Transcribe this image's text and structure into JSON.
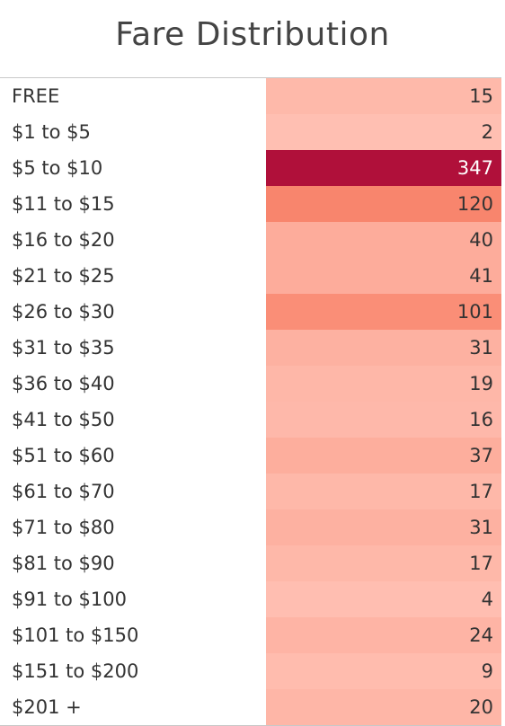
{
  "chart_data": {
    "type": "table",
    "title": "Fare Distribution",
    "categories": [
      "FREE",
      "$1 to $5",
      "$5 to $10",
      "$11 to $15",
      "$16 to $20",
      "$21 to $25",
      "$26 to $30",
      "$31 to $35",
      "$36 to $40",
      "$41 to $50",
      "$51 to $60",
      "$61 to $70",
      "$71 to $80",
      "$81 to $90",
      "$91 to $100",
      "$101 to $150",
      "$151 to $200",
      "$201 +"
    ],
    "values": [
      15,
      2,
      347,
      120,
      40,
      41,
      101,
      31,
      19,
      16,
      37,
      17,
      31,
      17,
      4,
      24,
      9,
      20
    ],
    "color_scale": {
      "low": "#ffbfb2",
      "mid": "#f9876e",
      "high": "#b0103a"
    }
  }
}
